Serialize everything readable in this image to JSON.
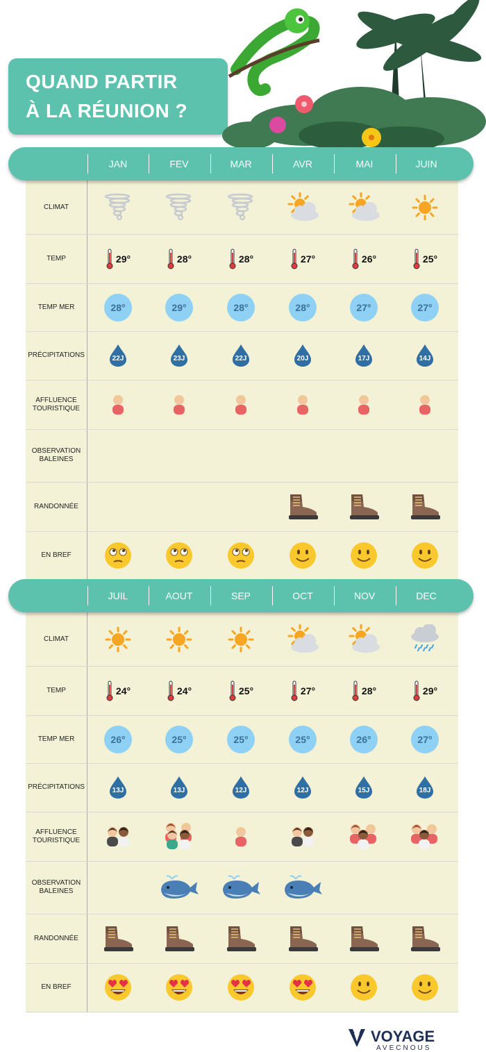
{
  "title": {
    "line1": "QUAND PARTIR",
    "line2": "À LA RÉUNION ?"
  },
  "logo": {
    "name": "VOYAGE",
    "sub": "AVECNOUS"
  },
  "colors": {
    "header": "#5cc2ad",
    "table_bg": "#f3f2d6",
    "sea": "#8ed1f5",
    "drop": "#2f6fa3"
  },
  "row_labels": {
    "climat": "CLIMAT",
    "temp": "TEMP",
    "temp_mer": "TEMP MER",
    "precip": "PRÉCIPITATIONS",
    "affluence_1": "AFFLUENCE",
    "affluence_2": "TOURISTIQUE",
    "baleines_1": "OBSERVATION",
    "baleines_2": "BALEINES",
    "randonnee": "RANDONNÉE",
    "bref": "EN BREF"
  },
  "sections": [
    {
      "months": [
        "JAN",
        "FEV",
        "MAR",
        "AVR",
        "MAI",
        "JUIN"
      ],
      "climat": [
        "cyclone-icon",
        "cyclone-icon",
        "cyclone-icon",
        "sun-cloud-icon",
        "sun-cloud-icon",
        "sun-icon"
      ],
      "temp": [
        "29°",
        "28°",
        "28°",
        "27°",
        "26°",
        "25°"
      ],
      "temp_mer": [
        "28°",
        "29°",
        "28°",
        "28°",
        "27°",
        "27°"
      ],
      "precip": [
        "22J",
        "23J",
        "22J",
        "20J",
        "17J",
        "14J"
      ],
      "affluence": [
        "1",
        "1",
        "1",
        "1",
        "1",
        "1"
      ],
      "baleines": [
        false,
        false,
        false,
        false,
        false,
        false
      ],
      "randonnee": [
        false,
        false,
        false,
        true,
        true,
        true
      ],
      "bref": [
        "thinking-face-icon",
        "thinking-face-icon",
        "thinking-face-icon",
        "smile-face-icon",
        "smile-face-icon",
        "smile-face-icon"
      ]
    },
    {
      "months": [
        "JUIL",
        "AOUT",
        "SEP",
        "OCT",
        "NOV",
        "DEC"
      ],
      "climat": [
        "sun-icon",
        "sun-icon",
        "sun-icon",
        "sun-cloud-icon",
        "sun-cloud-icon",
        "rain-cloud-icon"
      ],
      "temp": [
        "24°",
        "24°",
        "25°",
        "27°",
        "28°",
        "29°"
      ],
      "temp_mer": [
        "26°",
        "25°",
        "25°",
        "25°",
        "26°",
        "27°"
      ],
      "precip": [
        "13J",
        "13J",
        "12J",
        "12J",
        "15J",
        "18J"
      ],
      "affluence": [
        "2",
        "4",
        "1",
        "2",
        "3",
        "3"
      ],
      "baleines": [
        false,
        true,
        true,
        true,
        false,
        false
      ],
      "randonnee": [
        true,
        true,
        true,
        true,
        true,
        true
      ],
      "bref": [
        "heart-eyes-face-icon",
        "heart-eyes-face-icon",
        "heart-eyes-face-icon",
        "heart-eyes-face-icon",
        "smile-face-icon",
        "smile-face-icon"
      ]
    }
  ]
}
